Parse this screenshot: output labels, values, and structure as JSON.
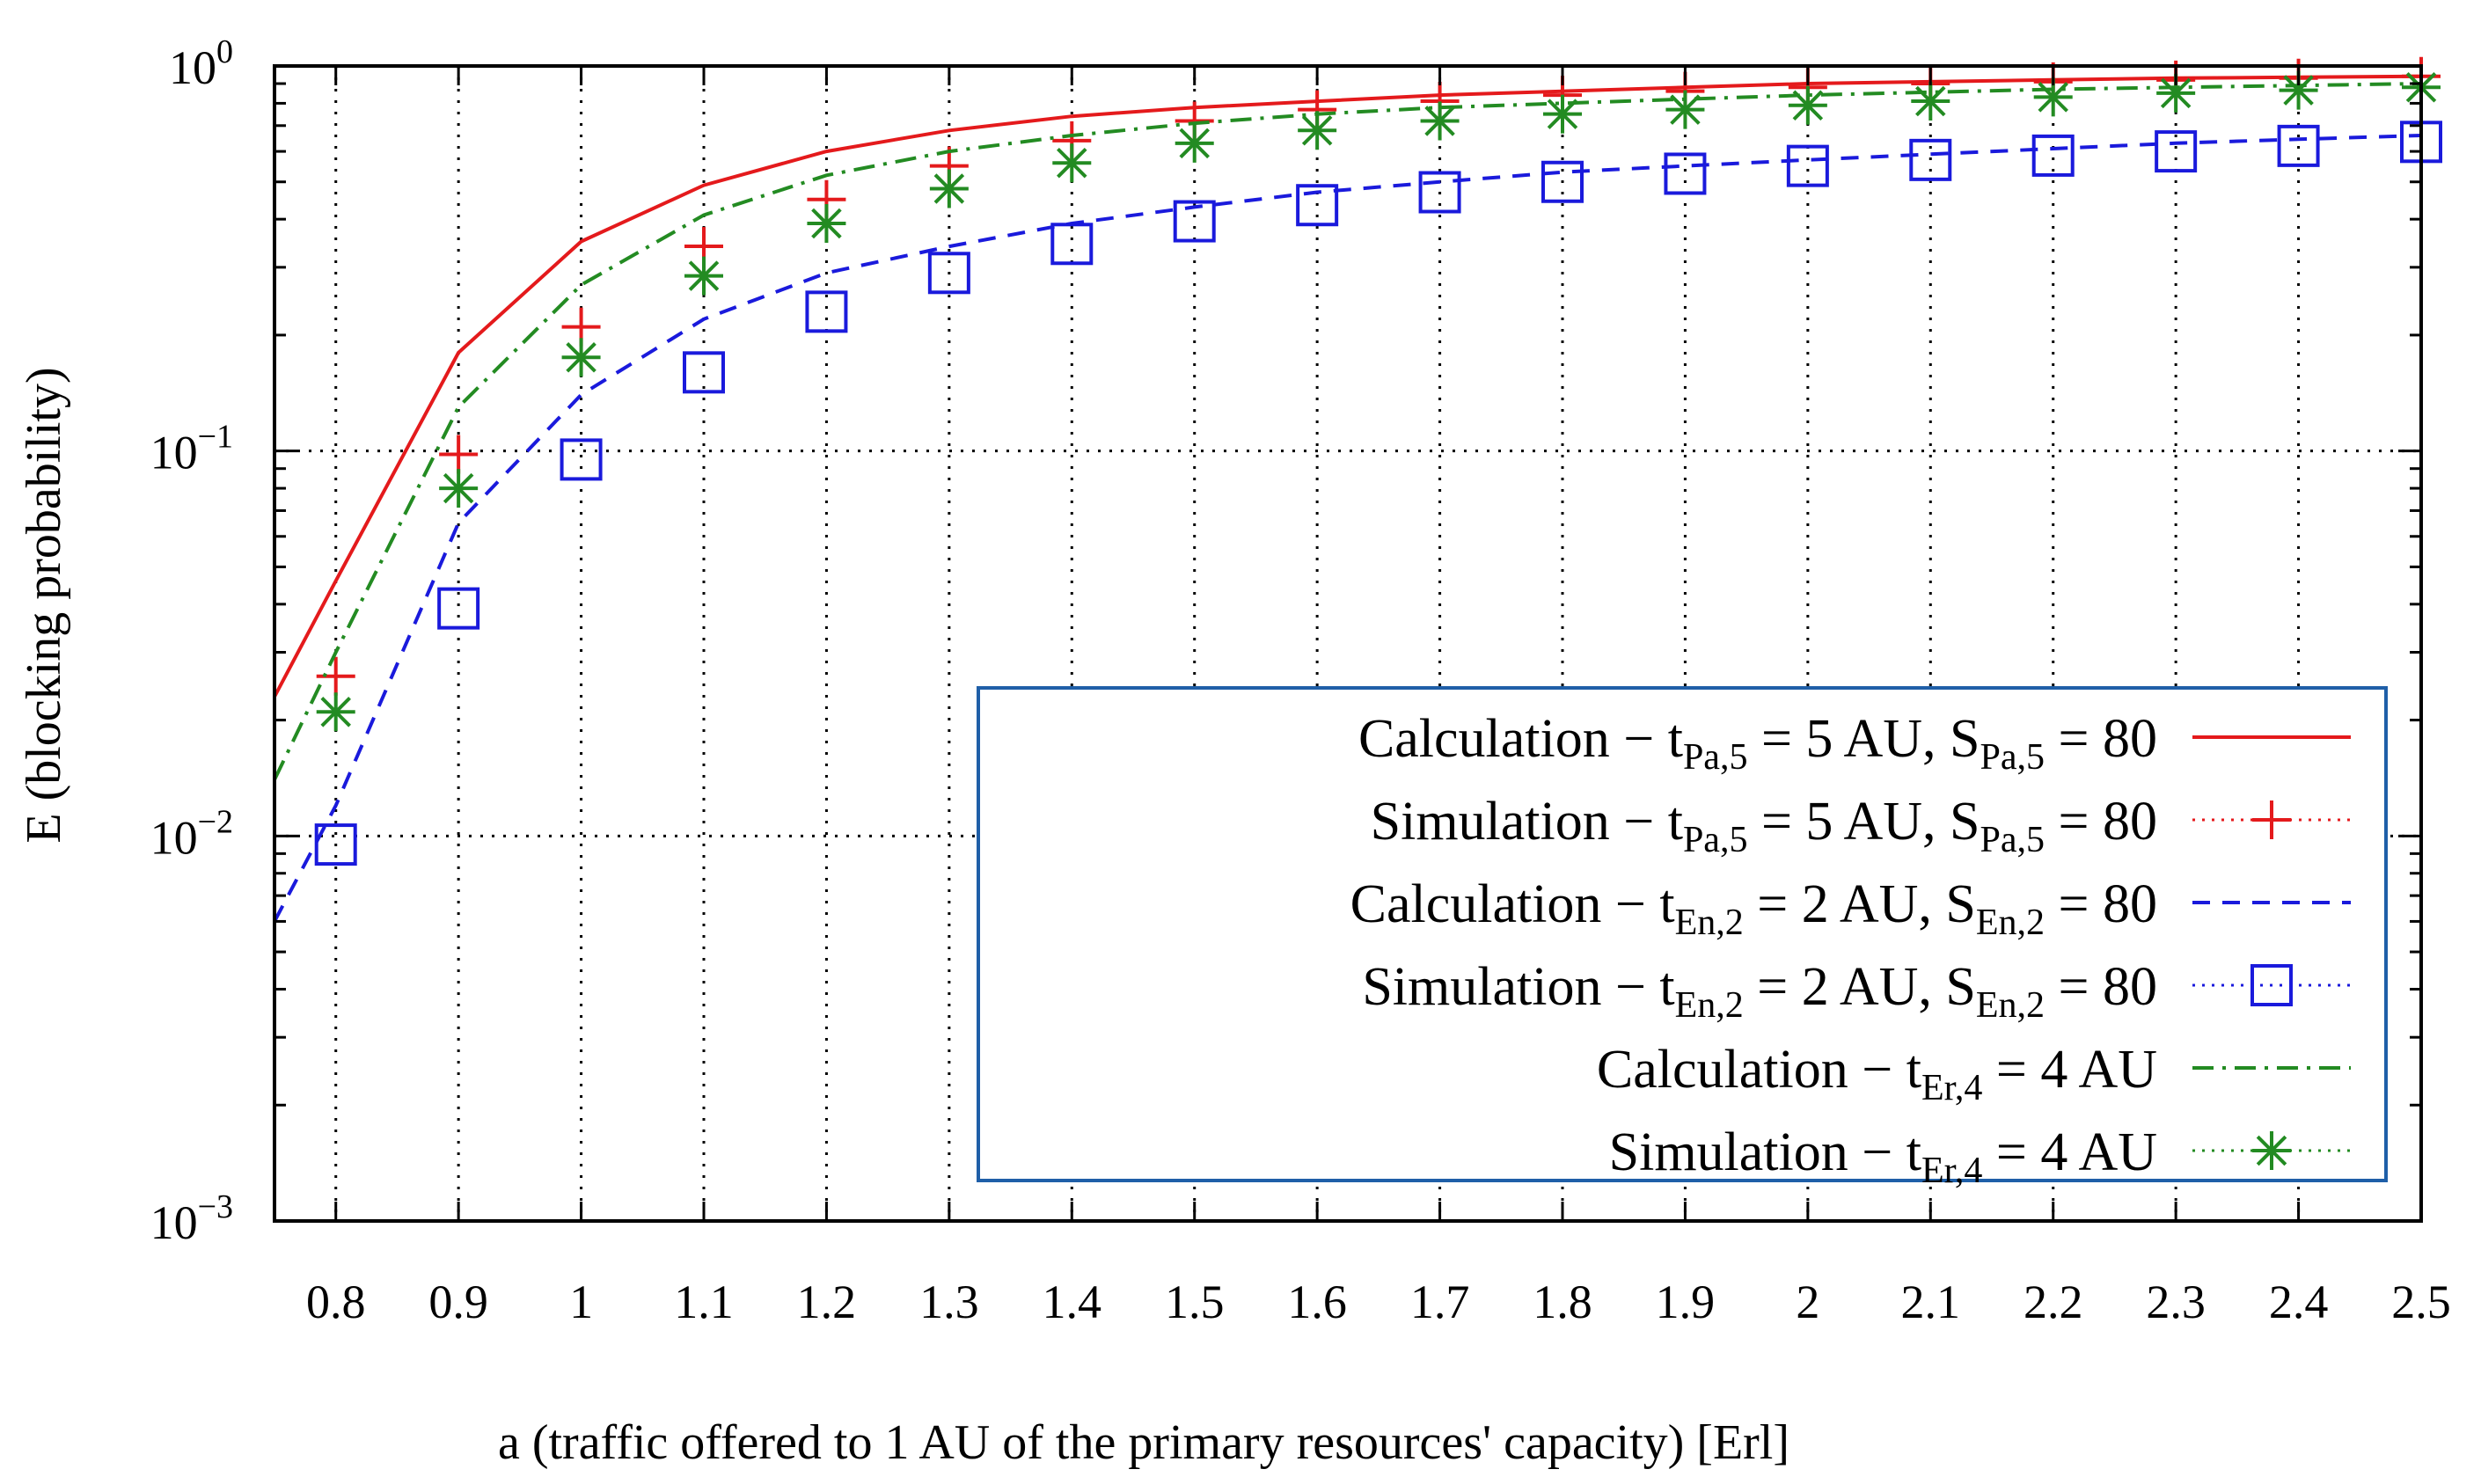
{
  "chart_data": {
    "type": "line",
    "title": "",
    "xlabel": "a (traffic offered to 1 AU of the primary resources' capacity) [Erl]",
    "ylabel": "E (blocking probability)",
    "ylim": [
      0.001,
      1
    ],
    "xlim": [
      0.75,
      2.5
    ],
    "yscale": "log",
    "grid": true,
    "legend_position": "bottom-right",
    "x_ticks": [
      "0.8",
      "0.9",
      "1",
      "1.1",
      "1.2",
      "1.3",
      "1.4",
      "1.5",
      "1.6",
      "1.7",
      "1.8",
      "1.9",
      "2",
      "2.1",
      "2.2",
      "2.3",
      "2.4",
      "2.5"
    ],
    "y_ticks": [
      {
        "base": "10",
        "exp": "0",
        "value": 1
      },
      {
        "base": "10",
        "exp": "−1",
        "value": 0.1
      },
      {
        "base": "10",
        "exp": "−2",
        "value": 0.01
      },
      {
        "base": "10",
        "exp": "−3",
        "value": 0.001
      }
    ],
    "series": [
      {
        "name": "Calculation − tPa,5 = 5 AU, SPa,5 = 80",
        "legend": {
          "pre": "Calculation − t",
          "sub1": "Pa,5",
          "mid": " = 5 AU, S",
          "sub2": "Pa,5",
          "post": " = 80"
        },
        "kind": "line",
        "style": "solid",
        "color": "#e41a1c",
        "x": [
          0.75,
          0.8,
          0.9,
          1.0,
          1.1,
          1.2,
          1.3,
          1.4,
          1.5,
          1.6,
          1.7,
          1.8,
          1.9,
          2.0,
          2.1,
          2.2,
          2.3,
          2.4,
          2.5
        ],
        "values": [
          0.023,
          0.046,
          0.18,
          0.35,
          0.49,
          0.6,
          0.68,
          0.74,
          0.78,
          0.81,
          0.84,
          0.86,
          0.88,
          0.9,
          0.91,
          0.92,
          0.93,
          0.935,
          0.94
        ]
      },
      {
        "name": "Simulation − tPa,5 = 5 AU, SPa,5 = 80",
        "legend": {
          "pre": "Simulation − t",
          "sub1": "Pa,5",
          "mid": " = 5 AU, S",
          "sub2": "Pa,5",
          "post": " = 80"
        },
        "kind": "marker",
        "marker": "plus",
        "color": "#e41a1c",
        "x": [
          0.8,
          0.9,
          1.0,
          1.1,
          1.2,
          1.3,
          1.4,
          1.5,
          1.6,
          1.7,
          1.8,
          1.9,
          2.0,
          2.1,
          2.2,
          2.3,
          2.4,
          2.5
        ],
        "values": [
          0.026,
          0.098,
          0.21,
          0.34,
          0.45,
          0.55,
          0.64,
          0.72,
          0.77,
          0.81,
          0.84,
          0.86,
          0.88,
          0.9,
          0.91,
          0.92,
          0.93,
          0.94
        ]
      },
      {
        "name": "Calculation − tEn,2 = 2 AU, SEn,2 = 80",
        "legend": {
          "pre": "Calculation − t",
          "sub1": "En,2",
          "mid": " = 2 AU, S",
          "sub2": "En,2",
          "post": " = 80"
        },
        "kind": "line",
        "style": "dashed",
        "color": "#1a1adc",
        "x": [
          0.75,
          0.8,
          0.9,
          1.0,
          1.1,
          1.2,
          1.3,
          1.4,
          1.5,
          1.6,
          1.7,
          1.8,
          1.9,
          2.0,
          2.1,
          2.2,
          2.3,
          2.4,
          2.5
        ],
        "values": [
          0.006,
          0.012,
          0.065,
          0.14,
          0.22,
          0.29,
          0.34,
          0.39,
          0.43,
          0.47,
          0.5,
          0.53,
          0.55,
          0.57,
          0.59,
          0.61,
          0.63,
          0.645,
          0.66
        ]
      },
      {
        "name": "Simulation − tEn,2 = 2 AU, SEn,2 = 80",
        "legend": {
          "pre": "Simulation − t",
          "sub1": "En,2",
          "mid": " = 2 AU, S",
          "sub2": "En,2",
          "post": " = 80"
        },
        "kind": "marker",
        "marker": "square",
        "color": "#1a1adc",
        "x": [
          0.8,
          0.9,
          1.0,
          1.1,
          1.2,
          1.3,
          1.4,
          1.5,
          1.6,
          1.7,
          1.8,
          1.9,
          2.0,
          2.1,
          2.2,
          2.3,
          2.4,
          2.5
        ],
        "values": [
          0.0095,
          0.039,
          0.095,
          0.16,
          0.23,
          0.29,
          0.345,
          0.395,
          0.435,
          0.47,
          0.5,
          0.525,
          0.55,
          0.57,
          0.585,
          0.6,
          0.62,
          0.635
        ]
      },
      {
        "name": "Calculation − tEr,4 = 4 AU",
        "legend": {
          "pre": "Calculation − t",
          "sub1": "Er,4",
          "mid": " = 4 AU",
          "sub2": "",
          "post": ""
        },
        "kind": "line",
        "style": "dashdot",
        "color": "#238b22",
        "x": [
          0.75,
          0.8,
          0.9,
          1.0,
          1.1,
          1.2,
          1.3,
          1.4,
          1.5,
          1.6,
          1.7,
          1.8,
          1.9,
          2.0,
          2.1,
          2.2,
          2.3,
          2.4,
          2.5
        ],
        "values": [
          0.014,
          0.03,
          0.13,
          0.27,
          0.41,
          0.52,
          0.6,
          0.66,
          0.71,
          0.75,
          0.78,
          0.8,
          0.82,
          0.84,
          0.855,
          0.87,
          0.88,
          0.89,
          0.9
        ]
      },
      {
        "name": "Simulation − tEr,4 = 4 AU",
        "legend": {
          "pre": "Simulation − t",
          "sub1": "Er,4",
          "mid": " = 4 AU",
          "sub2": "",
          "post": ""
        },
        "kind": "marker",
        "marker": "star",
        "color": "#238b22",
        "x": [
          0.8,
          0.9,
          1.0,
          1.1,
          1.2,
          1.3,
          1.4,
          1.5,
          1.6,
          1.7,
          1.8,
          1.9,
          2.0,
          2.1,
          2.2,
          2.3,
          2.4,
          2.5
        ],
        "values": [
          0.021,
          0.08,
          0.175,
          0.285,
          0.39,
          0.48,
          0.56,
          0.63,
          0.68,
          0.72,
          0.75,
          0.77,
          0.79,
          0.81,
          0.83,
          0.85,
          0.865,
          0.88
        ]
      }
    ]
  }
}
